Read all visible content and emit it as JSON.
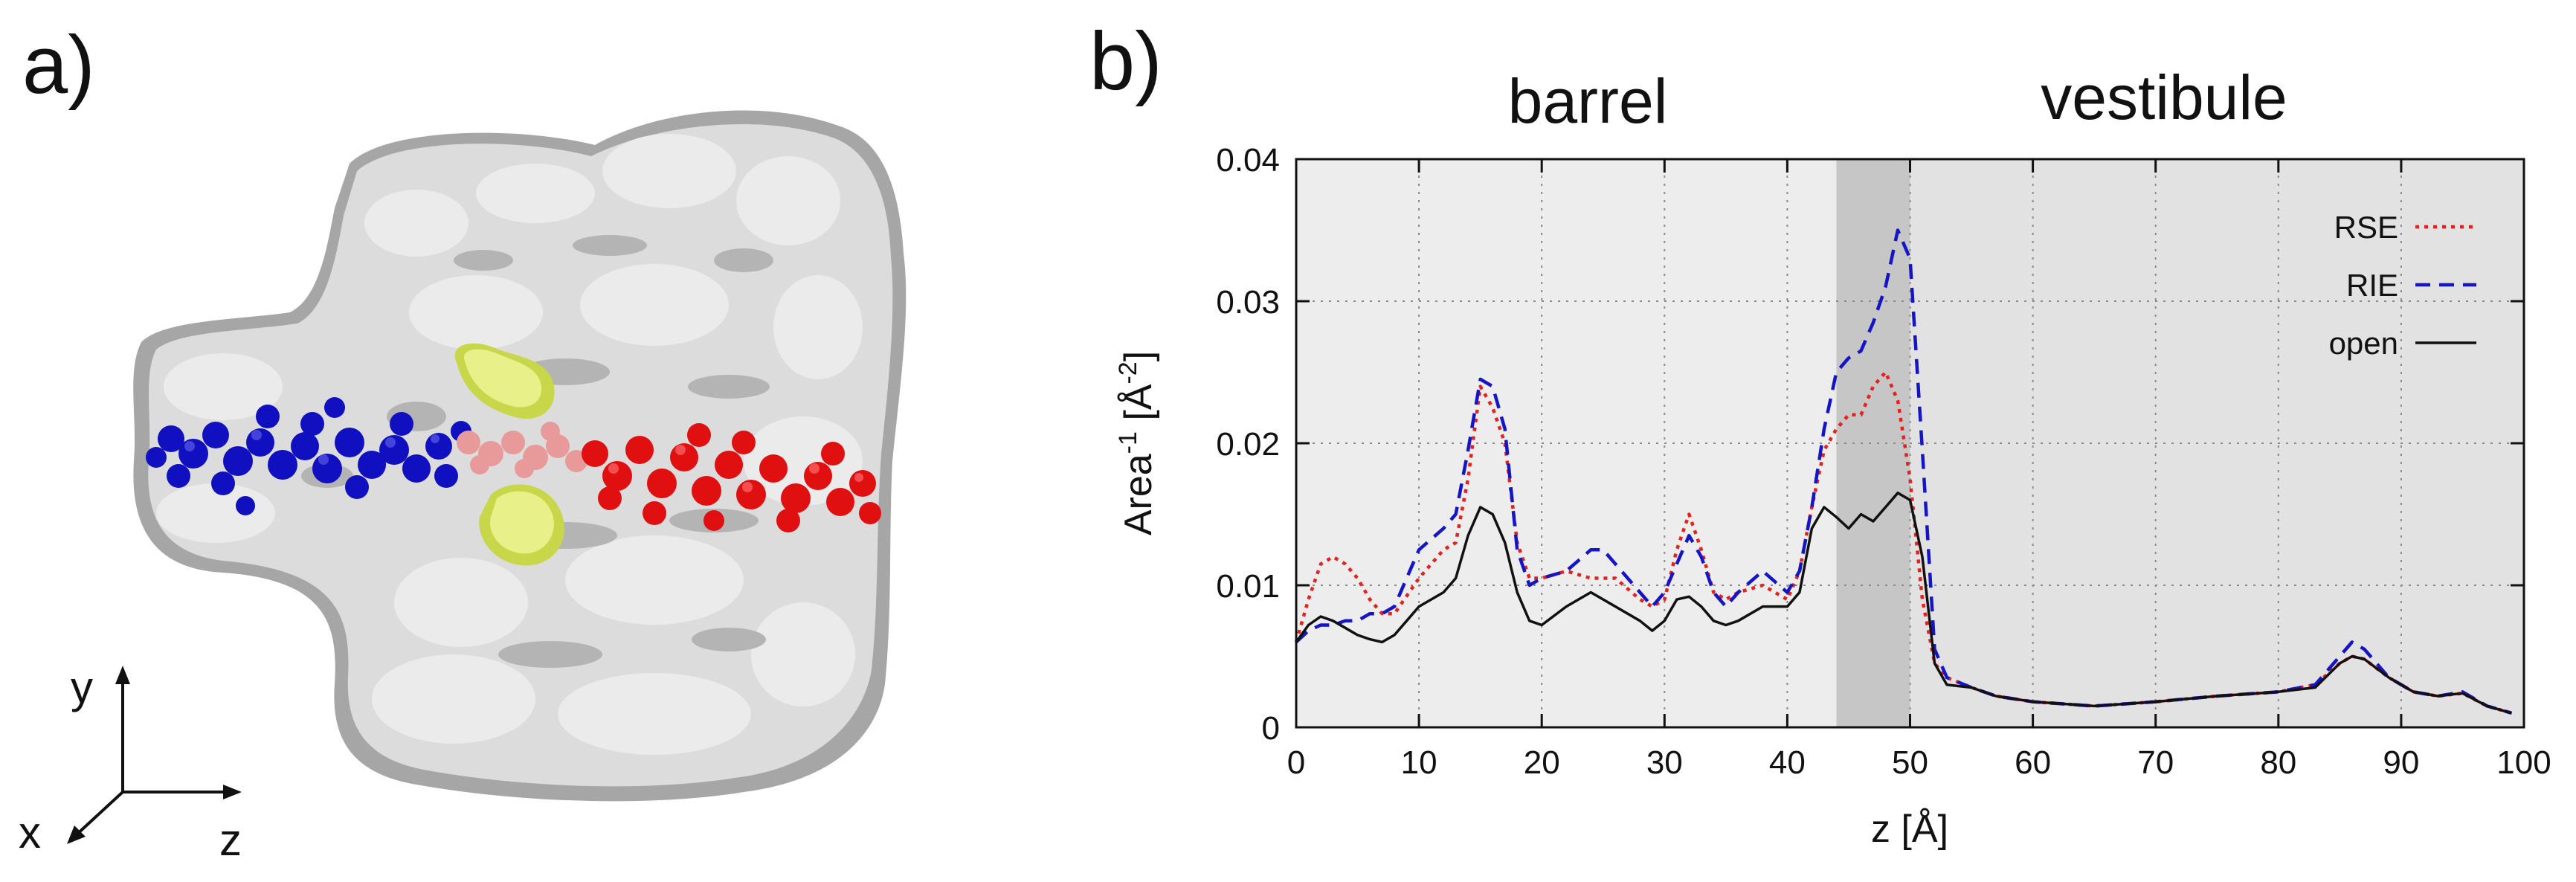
{
  "panel_a": {
    "label": "a)",
    "axes": {
      "y": "y",
      "x": "x",
      "z": "z"
    },
    "colors": {
      "protein": "#c8c8c8",
      "strand_left": "#1010c0",
      "strand_middle": "#e89a9a",
      "strand_right": "#e01010",
      "constriction": "#e0ee7a"
    }
  },
  "panel_b": {
    "label": "b)",
    "region_labels": {
      "barrel": "barrel",
      "vestibule": "vestibule"
    }
  },
  "chart_data": {
    "type": "line",
    "xlabel": "z [Å]",
    "ylabel_main": "Area",
    "ylabel_sup1": "-1",
    "ylabel_mid": " [Å",
    "ylabel_sup2": "-2",
    "ylabel_end": "]",
    "xlim": [
      0,
      100
    ],
    "ylim": [
      0,
      0.04
    ],
    "xticks": [
      0,
      10,
      20,
      30,
      40,
      50,
      60,
      70,
      80,
      90,
      100
    ],
    "yticks": [
      0,
      0.01,
      0.02,
      0.03,
      0.04
    ],
    "ytick_labels": [
      "0",
      "0.01",
      "0.02",
      "0.03",
      "0.04"
    ],
    "grid": true,
    "legend_position": "top-right",
    "shaded_regions": [
      {
        "from": 0,
        "to": 44,
        "color": "#ededed"
      },
      {
        "from": 44,
        "to": 50,
        "color": "#c6c6c6"
      },
      {
        "from": 50,
        "to": 100,
        "color": "#e2e2e2"
      }
    ],
    "series": [
      {
        "name": "RSE",
        "color": "#e8201c",
        "style": "dotted",
        "x": [
          0,
          1,
          2,
          3,
          4,
          5,
          6,
          7,
          8,
          10,
          12,
          13,
          14,
          15,
          16,
          17,
          18,
          19,
          20,
          22,
          24,
          26,
          28,
          29,
          30,
          31,
          32,
          33,
          34,
          35,
          36,
          38,
          40,
          41,
          42,
          43,
          44,
          45,
          46,
          47,
          48,
          49,
          50,
          51,
          52,
          53,
          55,
          57,
          60,
          65,
          70,
          75,
          80,
          83,
          85,
          86,
          87,
          89,
          91,
          93,
          95,
          97,
          99
        ],
        "y": [
          0.006,
          0.009,
          0.0115,
          0.012,
          0.0115,
          0.0105,
          0.009,
          0.008,
          0.008,
          0.0105,
          0.0125,
          0.013,
          0.0175,
          0.024,
          0.0225,
          0.02,
          0.013,
          0.0105,
          0.0105,
          0.011,
          0.0105,
          0.0105,
          0.009,
          0.0085,
          0.009,
          0.0125,
          0.015,
          0.0125,
          0.0095,
          0.009,
          0.0095,
          0.01,
          0.009,
          0.011,
          0.0155,
          0.0195,
          0.021,
          0.022,
          0.022,
          0.024,
          0.025,
          0.023,
          0.0175,
          0.009,
          0.0045,
          0.0035,
          0.0028,
          0.0022,
          0.0018,
          0.0015,
          0.0018,
          0.0022,
          0.0025,
          0.003,
          0.0045,
          0.005,
          0.0048,
          0.0035,
          0.0025,
          0.0022,
          0.0024,
          0.0015,
          0.001
        ]
      },
      {
        "name": "RIE",
        "color": "#1515c8",
        "style": "dashed",
        "x": [
          0,
          1,
          2,
          3,
          4,
          5,
          6,
          7,
          8,
          10,
          12,
          13,
          14,
          15,
          16,
          17,
          18,
          19,
          20,
          22,
          24,
          25,
          26,
          28,
          29,
          30,
          31,
          32,
          33,
          34,
          35,
          36,
          38,
          40,
          41,
          42,
          43,
          44,
          45,
          46,
          47,
          48,
          49,
          50,
          51,
          52,
          53,
          55,
          57,
          60,
          65,
          70,
          75,
          80,
          83,
          85,
          86,
          87,
          89,
          91,
          93,
          95,
          97,
          99
        ],
        "y": [
          0.006,
          0.0068,
          0.0072,
          0.0072,
          0.0075,
          0.0075,
          0.008,
          0.008,
          0.0085,
          0.0125,
          0.014,
          0.015,
          0.0195,
          0.0245,
          0.024,
          0.021,
          0.0125,
          0.01,
          0.0105,
          0.011,
          0.0125,
          0.0125,
          0.0115,
          0.0095,
          0.0085,
          0.0095,
          0.0115,
          0.0135,
          0.012,
          0.0095,
          0.0085,
          0.0095,
          0.011,
          0.0095,
          0.011,
          0.0155,
          0.021,
          0.025,
          0.026,
          0.0265,
          0.0285,
          0.031,
          0.035,
          0.033,
          0.0195,
          0.0055,
          0.0035,
          0.0028,
          0.0022,
          0.0018,
          0.0015,
          0.0018,
          0.0022,
          0.0025,
          0.003,
          0.005,
          0.006,
          0.0055,
          0.0035,
          0.0025,
          0.0022,
          0.0025,
          0.0015,
          0.001
        ]
      },
      {
        "name": "open",
        "color": "#111111",
        "style": "solid",
        "x": [
          0,
          1,
          2,
          3,
          4,
          5,
          6,
          7,
          8,
          9,
          10,
          12,
          13,
          14,
          15,
          16,
          17,
          18,
          19,
          20,
          22,
          24,
          26,
          28,
          29,
          30,
          31,
          32,
          33,
          34,
          35,
          36,
          38,
          40,
          41,
          42,
          43,
          44,
          45,
          46,
          47,
          48,
          49,
          50,
          51,
          52,
          53,
          55,
          57,
          60,
          65,
          70,
          75,
          80,
          83,
          85,
          86,
          87,
          89,
          91,
          93,
          95,
          97,
          99
        ],
        "y": [
          0.006,
          0.0072,
          0.0078,
          0.0075,
          0.007,
          0.0065,
          0.0062,
          0.006,
          0.0065,
          0.0075,
          0.0085,
          0.0095,
          0.0105,
          0.0135,
          0.0155,
          0.015,
          0.013,
          0.0095,
          0.0075,
          0.0072,
          0.0085,
          0.0095,
          0.0085,
          0.0075,
          0.0068,
          0.0075,
          0.009,
          0.0092,
          0.0085,
          0.0075,
          0.0072,
          0.0075,
          0.0085,
          0.0085,
          0.0095,
          0.014,
          0.0155,
          0.0148,
          0.014,
          0.015,
          0.0145,
          0.0155,
          0.0165,
          0.016,
          0.012,
          0.0045,
          0.003,
          0.0028,
          0.0022,
          0.0018,
          0.0015,
          0.0018,
          0.0022,
          0.0025,
          0.0028,
          0.0045,
          0.005,
          0.0048,
          0.0035,
          0.0025,
          0.0022,
          0.0024,
          0.0015,
          0.001
        ]
      }
    ]
  }
}
